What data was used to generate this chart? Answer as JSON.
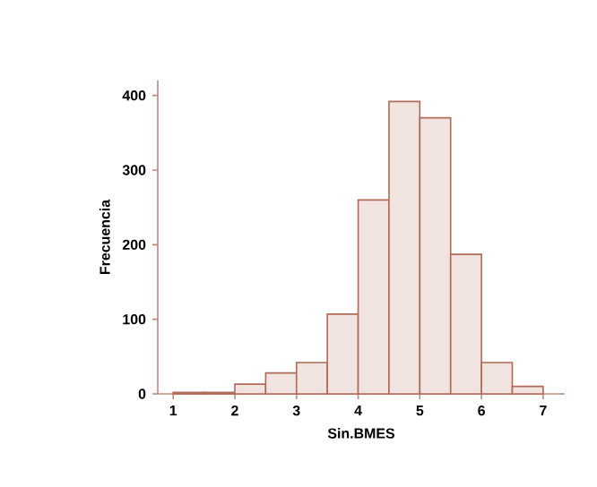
{
  "chart_data": {
    "type": "histogram",
    "xlabel": "Sin.BMES",
    "ylabel": "Frecuencia",
    "bins": [
      1,
      1.5,
      2,
      2.5,
      3,
      3.5,
      4,
      4.5,
      5,
      5.5,
      6,
      6.5,
      7
    ],
    "values": [
      2,
      2,
      13,
      28,
      42,
      107,
      260,
      392,
      370,
      187,
      42,
      10
    ],
    "color": "#f1e3df",
    "xlim": [
      0.75,
      7.35
    ],
    "ylim": [
      0,
      420
    ],
    "xticks": [
      1,
      2,
      3,
      4,
      5,
      6,
      7
    ],
    "yticks": [
      0,
      100,
      200,
      300,
      400
    ],
    "grid": false
  }
}
